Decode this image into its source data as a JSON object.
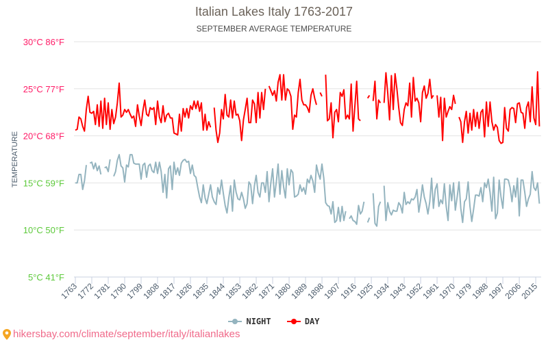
{
  "chart_data": {
    "type": "line",
    "title": "Italian Lakes Italy 1763-2017",
    "subtitle": "SEPTEMBER AVERAGE TEMPERATURE",
    "ylabel": "TEMPERATURE",
    "xlabel": "",
    "ylim": [
      5,
      30
    ],
    "xlim": [
      1763,
      2017
    ],
    "grid": true,
    "legend_position": "bottom",
    "y_ticks": [
      {
        "value": 30,
        "label": "30°C 86°F",
        "color": "#ff1a66"
      },
      {
        "value": 25,
        "label": "25°C 77°F",
        "color": "#ff1a66"
      },
      {
        "value": 20,
        "label": "20°C 68°F",
        "color": "#ff1a66"
      },
      {
        "value": 15,
        "label": "15°C 59°F",
        "color": "#5cc93a"
      },
      {
        "value": 10,
        "label": "10°C 50°F",
        "color": "#5cc93a"
      },
      {
        "value": 5,
        "label": "5°C 41°F",
        "color": "#5cc93a"
      }
    ],
    "x_ticks": [
      "1763",
      "1772",
      "1781",
      "1790",
      "1799",
      "1808",
      "1817",
      "1826",
      "1835",
      "1844",
      "1853",
      "1862",
      "1871",
      "1880",
      "1889",
      "1898",
      "1907",
      "1916",
      "1925",
      "1934",
      "1943",
      "1952",
      "1961",
      "1970",
      "1979",
      "1988",
      "1997",
      "2006",
      "2015"
    ],
    "x_start": 1763,
    "series": [
      {
        "name": "NIGHT",
        "color": "#94b4bf",
        "values": [
          15.0,
          15.0,
          15.9,
          15.9,
          14.3,
          15.2,
          16.9,
          null,
          17.1,
          17.2,
          16.5,
          17.1,
          16.3,
          16.8,
          15.9,
          null,
          16.6,
          16.7,
          16.2,
          17.5,
          null,
          15.7,
          16.2,
          17.4,
          18.0,
          16.8,
          16.6,
          15.1,
          16.9,
          16.7,
          18.0,
          18.0,
          17.1,
          17.0,
          17.0,
          17.0,
          15.4,
          16.9,
          17.1,
          15.6,
          16.8,
          17.0,
          16.3,
          16.1,
          17.2,
          16.0,
          17.2,
          16.2,
          14.0,
          15.9,
          13.4,
          16.5,
          16.8,
          14.3,
          17.2,
          15.9,
          16.6,
          15.8,
          17.1,
          17.4,
          17.5,
          17.2,
          17.3,
          16.0,
          16.9,
          15.8,
          15.6,
          14.5,
          13.5,
          12.9,
          14.8,
          13.4,
          12.8,
          13.8,
          14.8,
          13.5,
          13.0,
          12.7,
          14.5,
          13.8,
          15.3,
          13.9,
          12.6,
          11.8,
          13.4,
          14.7,
          12.0,
          15.3,
          14.0,
          13.3,
          13.2,
          14.0,
          13.3,
          12.3,
          12.8,
          15.1,
          14.8,
          12.8,
          14.7,
          15.8,
          14.0,
          13.5,
          15.0,
          15.0,
          14.0,
          16.2,
          13.0,
          15.0,
          16.5,
          13.5,
          15.1,
          17.0,
          13.8,
          16.3,
          14.6,
          13.4,
          16.5,
          14.8,
          16.4,
          16.1,
          13.5,
          13.6,
          13.8,
          14.8,
          14.1,
          14.5,
          13.8,
          15.4,
          15.0,
          15.8,
          15.2,
          14.0,
          16.9,
          16.0,
          15.4,
          17.0,
          15.5,
          12.9,
          12.6,
          12.5,
          11.7,
          13.0,
          10.8,
          11.0,
          12.4,
          10.9,
          12.5,
          11.0,
          12.0,
          null,
          11.2,
          11.5,
          11.0,
          10.9,
          10.6,
          12.6,
          11.7,
          12.0,
          13.0,
          null,
          10.8,
          11.3,
          null,
          13.9,
          10.7,
          10.4,
          12.5,
          13.0,
          null,
          14.7,
          11.0,
          12.9,
          12.0,
          11.6,
          12.1,
          12.0,
          12.0,
          12.9,
          12.6,
          11.8,
          14.0,
          12.7,
          13.0,
          12.8,
          13.3,
          13.2,
          13.5,
          14.3,
          11.9,
          13.2,
          14.8,
          13.5,
          12.8,
          11.7,
          13.0,
          15.5,
          12.3,
          14.3,
          14.9,
          12.5,
          13.2,
          12.8,
          14.9,
          12.5,
          11.0,
          14.8,
          13.1,
          15.0,
          12.1,
          13.5,
          15.1,
          12.3,
          10.8,
          13.0,
          13.3,
          15.1,
          12.5,
          10.9,
          12.2,
          13.7,
          13.7,
          13.6,
          14.5,
          13.0,
          15.0,
          14.5,
          15.4,
          14.0,
          12.0,
          15.6,
          11.2,
          11.8,
          15.3,
          13.5,
          12.3,
          15.4,
          15.4,
          15.3,
          14.5,
          13.0,
          14.7,
          13.5,
          15.5,
          11.5,
          15.3,
          15.3,
          14.0,
          12.5,
          13.3,
          13.8,
          16.2,
          14.5,
          14.2,
          15.0,
          12.8
        ]
      },
      {
        "name": "DAY",
        "color": "#ff0000",
        "values": [
          20.6,
          20.7,
          22.0,
          21.8,
          21.0,
          20.5,
          22.8,
          24.2,
          22.5,
          22.4,
          22.6,
          21.2,
          23.3,
          21.0,
          23.7,
          20.8,
          24.0,
          21.2,
          23.5,
          20.7,
          22.8,
          21.3,
          22.0,
          23.5,
          25.6,
          22.0,
          22.2,
          22.8,
          22.5,
          22.8,
          22.3,
          21.9,
          22.1,
          21.0,
          23.3,
          22.1,
          21.1,
          22.7,
          23.8,
          22.3,
          22.1,
          23.0,
          22.8,
          23.0,
          21.2,
          23.7,
          22.0,
          21.4,
          23.2,
          21.5,
          22.2,
          22.4,
          21.9,
          21.9,
          20.3,
          20.2,
          20.1,
          22.3,
          20.5,
          22.9,
          22.0,
          22.9,
          21.9,
          23.2,
          22.8,
          23.7,
          22.9,
          23.7,
          22.6,
          23.5,
          20.6,
          22.3,
          20.6,
          21.5,
          20.9,
          null,
          23.0,
          20.6,
          19.3,
          20.3,
          22.8,
          21.8,
          24.4,
          22.2,
          22.0,
          23.8,
          21.9,
          23.7,
          22.2,
          22.3,
          21.6,
          19.5,
          21.7,
          22.8,
          24.0,
          21.4,
          21.4,
          23.8,
          23.4,
          21.4,
          24.6,
          21.9,
          24.6,
          22.8,
          25.0,
          null,
          25.3,
          24.8,
          24.3,
          24.8,
          23.7,
          25.7,
          26.5,
          23.8,
          26.5,
          23.8,
          25.0,
          24.8,
          24.2,
          20.7,
          22.2,
          22.0,
          24.6,
          26.0,
          23.8,
          23.3,
          23.3,
          23.0,
          22.5,
          24.3,
          25.0,
          24.0,
          23.3,
          null,
          24.6,
          24.2,
          null,
          26.5,
          21.6,
          21.8,
          23.5,
          19.8,
          22.5,
          22.8,
          21.5,
          24.6,
          24.2,
          24.9,
          21.8,
          22.2,
          21.8,
          25.5,
          20.5,
          23.2,
          25.8,
          21.8,
          21.6,
          null,
          null,
          null,
          24.0,
          24.3,
          null,
          23.7,
          25.8,
          21.8,
          23.8,
          23.5,
          null,
          23.5,
          26.7,
          24.5,
          21.7,
          26.4,
          22.8,
          26.6,
          25.0,
          23.0,
          21.4,
          21.1,
          22.8,
          23.5,
          23.2,
          25.6,
          22.0,
          26.2,
          23.7,
          24.0,
          23.5,
          21.5,
          24.6,
          25.3,
          24.0,
          24.5,
          26.0,
          24.0,
          24.3,
          null,
          24.3,
          22.0,
          24.1,
          19.5,
          24.0,
          22.0,
          22.6,
          23.1,
          22.8,
          24.3,
          23.4,
          null,
          22.0,
          21.5,
          19.3,
          21.5,
          22.6,
          20.3,
          22.4,
          20.6,
          22.8,
          21.0,
          22.5,
          20.8,
          22.5,
          22.8,
          19.9,
          23.6,
          21.0,
          23.6,
          21.5,
          20.6,
          21.2,
          20.9,
          19.5,
          19.2,
          19.3,
          23.0,
          20.8,
          20.5,
          22.8,
          23.0,
          22.9,
          21.4,
          23.4,
          23.5,
          22.5,
          22.4,
          20.8,
          23.0,
          23.6,
          21.5,
          25.2,
          21.9,
          21.2,
          26.8,
          21.0
        ]
      }
    ]
  },
  "footer": {
    "source": "hikersbay.com/climate/september/italy/italianlakes"
  }
}
